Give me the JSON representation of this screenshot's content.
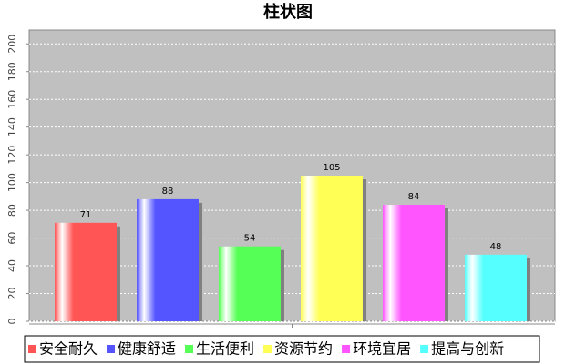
{
  "chart_data": {
    "type": "bar",
    "title": "柱状图",
    "categories": [
      null
    ],
    "series": [
      {
        "name": "安全耐久",
        "color": "#ff5555",
        "values": [
          71
        ]
      },
      {
        "name": "健康舒适",
        "color": "#5555ff",
        "values": [
          88
        ]
      },
      {
        "name": "生活便利",
        "color": "#55ff55",
        "values": [
          54
        ]
      },
      {
        "name": "资源节约",
        "color": "#ffff55",
        "values": [
          105
        ]
      },
      {
        "name": "环境宜居",
        "color": "#ff55ff",
        "values": [
          84
        ]
      },
      {
        "name": "提高与创新",
        "color": "#55ffff",
        "values": [
          48
        ]
      }
    ],
    "ylim": [
      0,
      210
    ],
    "yticks": [
      0,
      20,
      40,
      60,
      80,
      100,
      120,
      140,
      160,
      180,
      200
    ],
    "grid": true,
    "legend": "bottom"
  }
}
